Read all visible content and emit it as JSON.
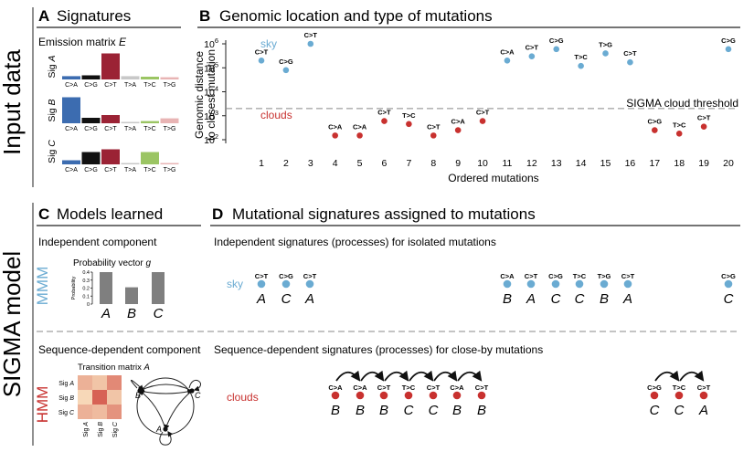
{
  "side_labels": {
    "top": "Input data",
    "bottom": "SIGMA model"
  },
  "panelA": {
    "letter": "A",
    "title": "Signatures",
    "subtitle": "Emission matrix",
    "subtitle_var": "E",
    "categories": [
      "C>A",
      "C>G",
      "C>T",
      "T>A",
      "T>C",
      "T>G"
    ],
    "signatures": [
      {
        "label": "Sig",
        "var": "A",
        "values": [
          0.12,
          0.15,
          0.95,
          0.12,
          0.1,
          0.08
        ],
        "colors": [
          "#3c6cb0",
          "#111111",
          "#9b2335",
          "#c8c8c8",
          "#9bc563",
          "#e8b4b4"
        ]
      },
      {
        "label": "Sig",
        "var": "B",
        "values": [
          0.95,
          0.2,
          0.3,
          0.02,
          0.08,
          0.18
        ],
        "colors": [
          "#3c6cb0",
          "#111111",
          "#9b2335",
          "#c8c8c8",
          "#9bc563",
          "#e8b4b4"
        ]
      },
      {
        "label": "Sig",
        "var": "C",
        "values": [
          0.15,
          0.45,
          0.55,
          0.05,
          0.45,
          0.05
        ],
        "colors": [
          "#3c6cb0",
          "#111111",
          "#9b2335",
          "#c8c8c8",
          "#9bc563",
          "#e8b4b4"
        ]
      }
    ]
  },
  "panelB": {
    "letter": "B",
    "title": "Genomic location and type of mutations",
    "ylabel_line1": "Genomic distance",
    "ylabel_line2": "to closest mutation",
    "xlabel": "Ordered mutations",
    "sky_label": "sky",
    "clouds_label": "clouds",
    "threshold_label": "SIGMA cloud threshold",
    "threshold_value": 2000,
    "ylim": [
      100,
      1000000
    ],
    "yticks": [
      "10",
      "10",
      "10",
      "10",
      "10"
    ],
    "ytick_exps": [
      "6",
      "5",
      "4",
      "3",
      "2"
    ],
    "xticks": [
      "1",
      "2",
      "3",
      "4",
      "5",
      "6",
      "7",
      "8",
      "9",
      "10",
      "11",
      "12",
      "13",
      "14",
      "15",
      "16",
      "17",
      "18",
      "19",
      "20"
    ],
    "colors": {
      "sky": "#6aabd2",
      "clouds": "#c8312f"
    }
  },
  "chart_data": {
    "type": "scatter",
    "title": "Genomic location and type of mutations",
    "xlabel": "Ordered mutations",
    "ylabel": "Genomic distance to closest mutation",
    "y_scale": "log",
    "ylim": [
      100,
      1000000
    ],
    "x": [
      1,
      2,
      3,
      4,
      5,
      6,
      7,
      8,
      9,
      10,
      11,
      12,
      13,
      14,
      15,
      16,
      17,
      18,
      19,
      20
    ],
    "y": [
      200000,
      80000,
      1000000,
      150,
      150,
      600,
      450,
      150,
      250,
      600,
      200000,
      300000,
      600000,
      120000,
      400000,
      170000,
      250,
      180,
      350,
      600000
    ],
    "labels": [
      "C>T",
      "C>G",
      "C>T",
      "C>A",
      "C>A",
      "C>T",
      "T>C",
      "C>T",
      "C>A",
      "C>T",
      "C>A",
      "C>T",
      "C>G",
      "T>C",
      "T>G",
      "C>T",
      "C>G",
      "T>C",
      "C>T",
      "C>G"
    ],
    "class": [
      "sky",
      "sky",
      "sky",
      "clouds",
      "clouds",
      "clouds",
      "clouds",
      "clouds",
      "clouds",
      "clouds",
      "sky",
      "sky",
      "sky",
      "sky",
      "sky",
      "sky",
      "clouds",
      "clouds",
      "clouds",
      "sky"
    ],
    "threshold": 2000,
    "grid": false
  },
  "panelC": {
    "letter": "C",
    "title": "Models learned",
    "indep_title": "Independent component",
    "seq_title": "Sequence-dependent component",
    "mmm": "MMM",
    "hmm": "HMM",
    "prob_title": "Probability vector",
    "prob_var": "g",
    "prob_ylabel": "Probability",
    "prob_ticks": [
      "0.4",
      "0.3",
      "0.2",
      "0.1",
      "0"
    ],
    "prob_values": [
      0.4,
      0.21,
      0.4
    ],
    "prob_cats": [
      "A",
      "B",
      "C"
    ],
    "trans_title": "Transition matrix",
    "trans_var": "A",
    "trans_rows": [
      "A",
      "B",
      "C"
    ],
    "trans_matrix": [
      [
        0.3,
        0.2,
        0.5
      ],
      [
        0.1,
        0.7,
        0.2
      ],
      [
        0.3,
        0.25,
        0.45
      ]
    ],
    "graph_nodes": [
      "B",
      "C",
      "A"
    ]
  },
  "panelD": {
    "letter": "D",
    "title": "Mutational signatures assigned to mutations",
    "indep_title": "Independent signatures (processes) for isolated mutations",
    "seq_title": "Sequence-dependent signatures (processes) for close-by mutations",
    "sky_label": "sky",
    "clouds_label": "clouds",
    "sky_groups": [
      {
        "types": [
          "C>T",
          "C>G",
          "C>T"
        ],
        "sigs": [
          "A",
          "C",
          "A"
        ]
      },
      {
        "types": [
          "C>A",
          "C>T",
          "C>G",
          "T>C",
          "T>G",
          "C>T"
        ],
        "sigs": [
          "B",
          "A",
          "C",
          "C",
          "B",
          "A"
        ]
      },
      {
        "types": [
          "C>G"
        ],
        "sigs": [
          "C"
        ]
      }
    ],
    "cloud_groups": [
      {
        "types": [
          "C>A",
          "C>A",
          "C>T",
          "T>C",
          "C>T",
          "C>A",
          "C>T"
        ],
        "sigs": [
          "B",
          "B",
          "B",
          "C",
          "C",
          "B",
          "B"
        ]
      },
      {
        "types": [
          "C>G",
          "T>C",
          "C>T"
        ],
        "sigs": [
          "C",
          "C",
          "A"
        ]
      }
    ]
  }
}
